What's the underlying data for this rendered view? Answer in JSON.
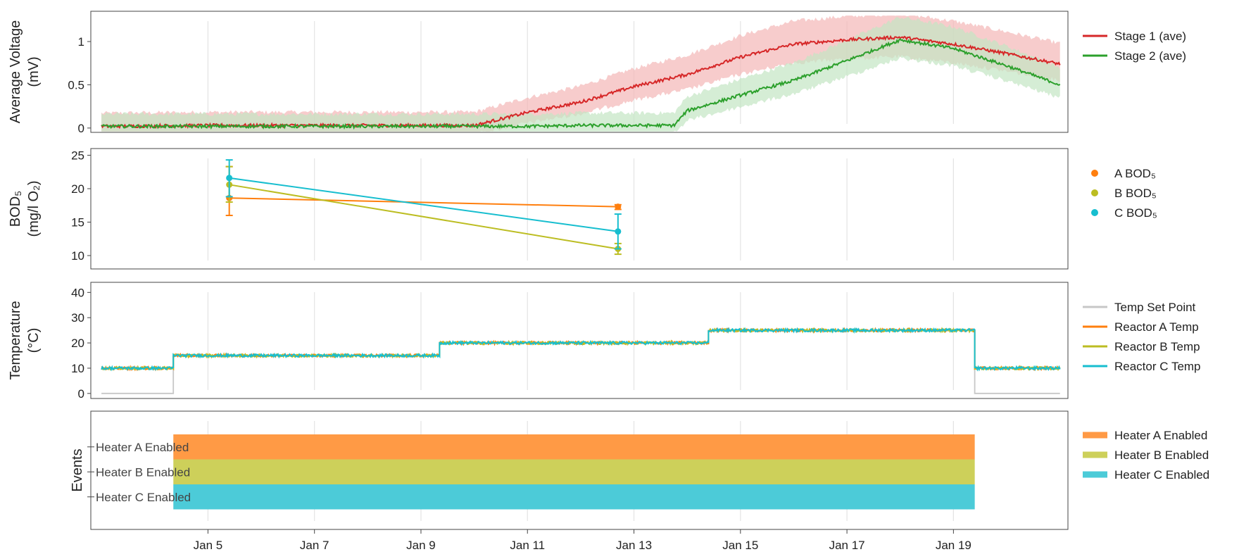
{
  "chart_data": [
    {
      "type": "line",
      "panel": "voltage",
      "ylabel": [
        "Average Voltage",
        "(mV)"
      ],
      "ylim": [
        -0.05,
        1.35
      ],
      "yticks": [
        0,
        0.5,
        1
      ],
      "ytick_labels": [
        "0",
        "0.5",
        "1"
      ],
      "legend_placement": "right",
      "series": [
        {
          "name": "Stage 1 (ave)",
          "color": "#d62728",
          "band": "#f4b6b6",
          "points": [
            [
              "2023-01-03",
              0.02
            ],
            [
              "2023-01-05",
              0.03
            ],
            [
              "2023-01-07",
              0.03
            ],
            [
              "2023-01-09",
              0.03
            ],
            [
              "2023-01-10",
              0.03
            ],
            [
              "2023-01-11",
              0.18
            ],
            [
              "2023-01-12",
              0.3
            ],
            [
              "2023-01-13",
              0.48
            ],
            [
              "2023-01-14",
              0.62
            ],
            [
              "2023-01-15",
              0.82
            ],
            [
              "2023-01-16",
              0.97
            ],
            [
              "2023-01-17",
              1.02
            ],
            [
              "2023-01-18",
              1.05
            ],
            [
              "2023-01-19",
              0.97
            ],
            [
              "2023-01-20",
              0.86
            ],
            [
              "2023-01-21",
              0.74
            ]
          ]
        },
        {
          "name": "Stage 2 (ave)",
          "color": "#2ca02c",
          "band": "#c3e6c3",
          "points": [
            [
              "2023-01-03",
              0.02
            ],
            [
              "2023-01-05",
              0.02
            ],
            [
              "2023-01-07",
              0.02
            ],
            [
              "2023-01-09",
              0.02
            ],
            [
              "2023-01-11",
              0.02
            ],
            [
              "2023-01-12",
              0.03
            ],
            [
              "2023-01-13",
              0.03
            ],
            [
              "2023-01-13.75",
              0.03
            ],
            [
              "2023-01-14",
              0.2
            ],
            [
              "2023-01-15",
              0.38
            ],
            [
              "2023-01-16",
              0.55
            ],
            [
              "2023-01-17",
              0.78
            ],
            [
              "2023-01-18",
              1.02
            ],
            [
              "2023-01-19",
              0.92
            ],
            [
              "2023-01-20",
              0.72
            ],
            [
              "2023-01-21",
              0.5
            ]
          ]
        }
      ]
    },
    {
      "type": "line",
      "panel": "bod",
      "ylabel": [
        "BOD₅",
        "(mg/l O₂)"
      ],
      "ylim": [
        8,
        26
      ],
      "yticks": [
        10,
        15,
        20,
        25
      ],
      "ytick_labels": [
        "10",
        "15",
        "20",
        "25"
      ],
      "legend_placement": "right",
      "series": [
        {
          "name": "A BOD₅",
          "color": "#ff7f0e",
          "points": [
            [
              "2023-01-05.4",
              18.6,
              16.0,
              23.3
            ],
            [
              "2023-01-12.7",
              17.3,
              16.9,
              17.6
            ]
          ]
        },
        {
          "name": "B BOD₅",
          "color": "#bcbd22",
          "points": [
            [
              "2023-01-05.4",
              20.6,
              18.0,
              23.3
            ],
            [
              "2023-01-12.7",
              11.0,
              10.2,
              11.8
            ]
          ]
        },
        {
          "name": "C BOD₅",
          "color": "#17becf",
          "points": [
            [
              "2023-01-05.4",
              21.6,
              18.8,
              24.3
            ],
            [
              "2023-01-12.7",
              13.6,
              11.0,
              16.2
            ]
          ]
        }
      ]
    },
    {
      "type": "line",
      "panel": "temperature",
      "ylabel": [
        "Temperature",
        "(°C)"
      ],
      "ylim": [
        -2,
        44
      ],
      "yticks": [
        0,
        10,
        20,
        30,
        40
      ],
      "ytick_labels": [
        "0",
        "10",
        "20",
        "30",
        "40"
      ],
      "legend_placement": "right",
      "series": [
        {
          "name": "Temp Set Point",
          "color": "#c7c7c7",
          "points": [
            [
              "2023-01-03",
              0
            ],
            [
              "2023-01-04.35",
              0
            ],
            [
              "2023-01-04.35",
              15
            ],
            [
              "2023-01-09.35",
              15
            ],
            [
              "2023-01-09.35",
              20
            ],
            [
              "2023-01-14.4",
              20
            ],
            [
              "2023-01-14.4",
              25
            ],
            [
              "2023-01-19.4",
              25
            ],
            [
              "2023-01-19.4",
              0
            ],
            [
              "2023-01-21",
              0
            ]
          ]
        },
        {
          "name": "Reactor A Temp",
          "color": "#ff7f0e",
          "points": [
            [
              "2023-01-03",
              10
            ],
            [
              "2023-01-04.35",
              10
            ],
            [
              "2023-01-04.35",
              15
            ],
            [
              "2023-01-09.35",
              15
            ],
            [
              "2023-01-09.35",
              20
            ],
            [
              "2023-01-14.4",
              20
            ],
            [
              "2023-01-14.4",
              25
            ],
            [
              "2023-01-19.4",
              25
            ],
            [
              "2023-01-19.4",
              10
            ],
            [
              "2023-01-21",
              10
            ]
          ]
        },
        {
          "name": "Reactor B Temp",
          "color": "#bcbd22",
          "points": [
            [
              "2023-01-03",
              10
            ],
            [
              "2023-01-04.35",
              10
            ],
            [
              "2023-01-04.35",
              15
            ],
            [
              "2023-01-09.35",
              15
            ],
            [
              "2023-01-09.35",
              20
            ],
            [
              "2023-01-14.4",
              20
            ],
            [
              "2023-01-14.4",
              25
            ],
            [
              "2023-01-19.4",
              25
            ],
            [
              "2023-01-19.4",
              10
            ],
            [
              "2023-01-21",
              10
            ]
          ]
        },
        {
          "name": "Reactor C Temp",
          "color": "#17becf",
          "points": [
            [
              "2023-01-03",
              10
            ],
            [
              "2023-01-04.35",
              10
            ],
            [
              "2023-01-04.35",
              15
            ],
            [
              "2023-01-09.35",
              15
            ],
            [
              "2023-01-09.35",
              20
            ],
            [
              "2023-01-14.4",
              20
            ],
            [
              "2023-01-14.4",
              25
            ],
            [
              "2023-01-19.4",
              25
            ],
            [
              "2023-01-19.4",
              10
            ],
            [
              "2023-01-21",
              10
            ]
          ]
        }
      ]
    },
    {
      "type": "bar",
      "panel": "events",
      "ylabel": [
        "Events"
      ],
      "categories": [
        "Heater A Enabled",
        "Heater B Enabled",
        "Heater C Enabled"
      ],
      "legend_placement": "right",
      "series": [
        {
          "name": "Heater A Enabled",
          "color": "#ff9a45",
          "start": "2023-01-04.35",
          "end": "2023-01-19.4"
        },
        {
          "name": "Heater B Enabled",
          "color": "#cdd05a",
          "start": "2023-01-04.35",
          "end": "2023-01-19.4"
        },
        {
          "name": "Heater C Enabled",
          "color": "#4ccbd8",
          "start": "2023-01-04.35",
          "end": "2023-01-19.4"
        }
      ]
    }
  ],
  "x_axis": {
    "xlim": [
      "2023-01-02.8",
      "2023-01-21.15"
    ],
    "ticks": [
      "2023-01-05",
      "2023-01-07",
      "2023-01-09",
      "2023-01-11",
      "2023-01-13",
      "2023-01-15",
      "2023-01-17",
      "2023-01-19"
    ],
    "tick_labels": [
      "Jan 5",
      "Jan 7",
      "Jan 9",
      "Jan 11",
      "Jan 13",
      "Jan 15",
      "Jan 17",
      "Jan 19"
    ],
    "grid": true
  }
}
